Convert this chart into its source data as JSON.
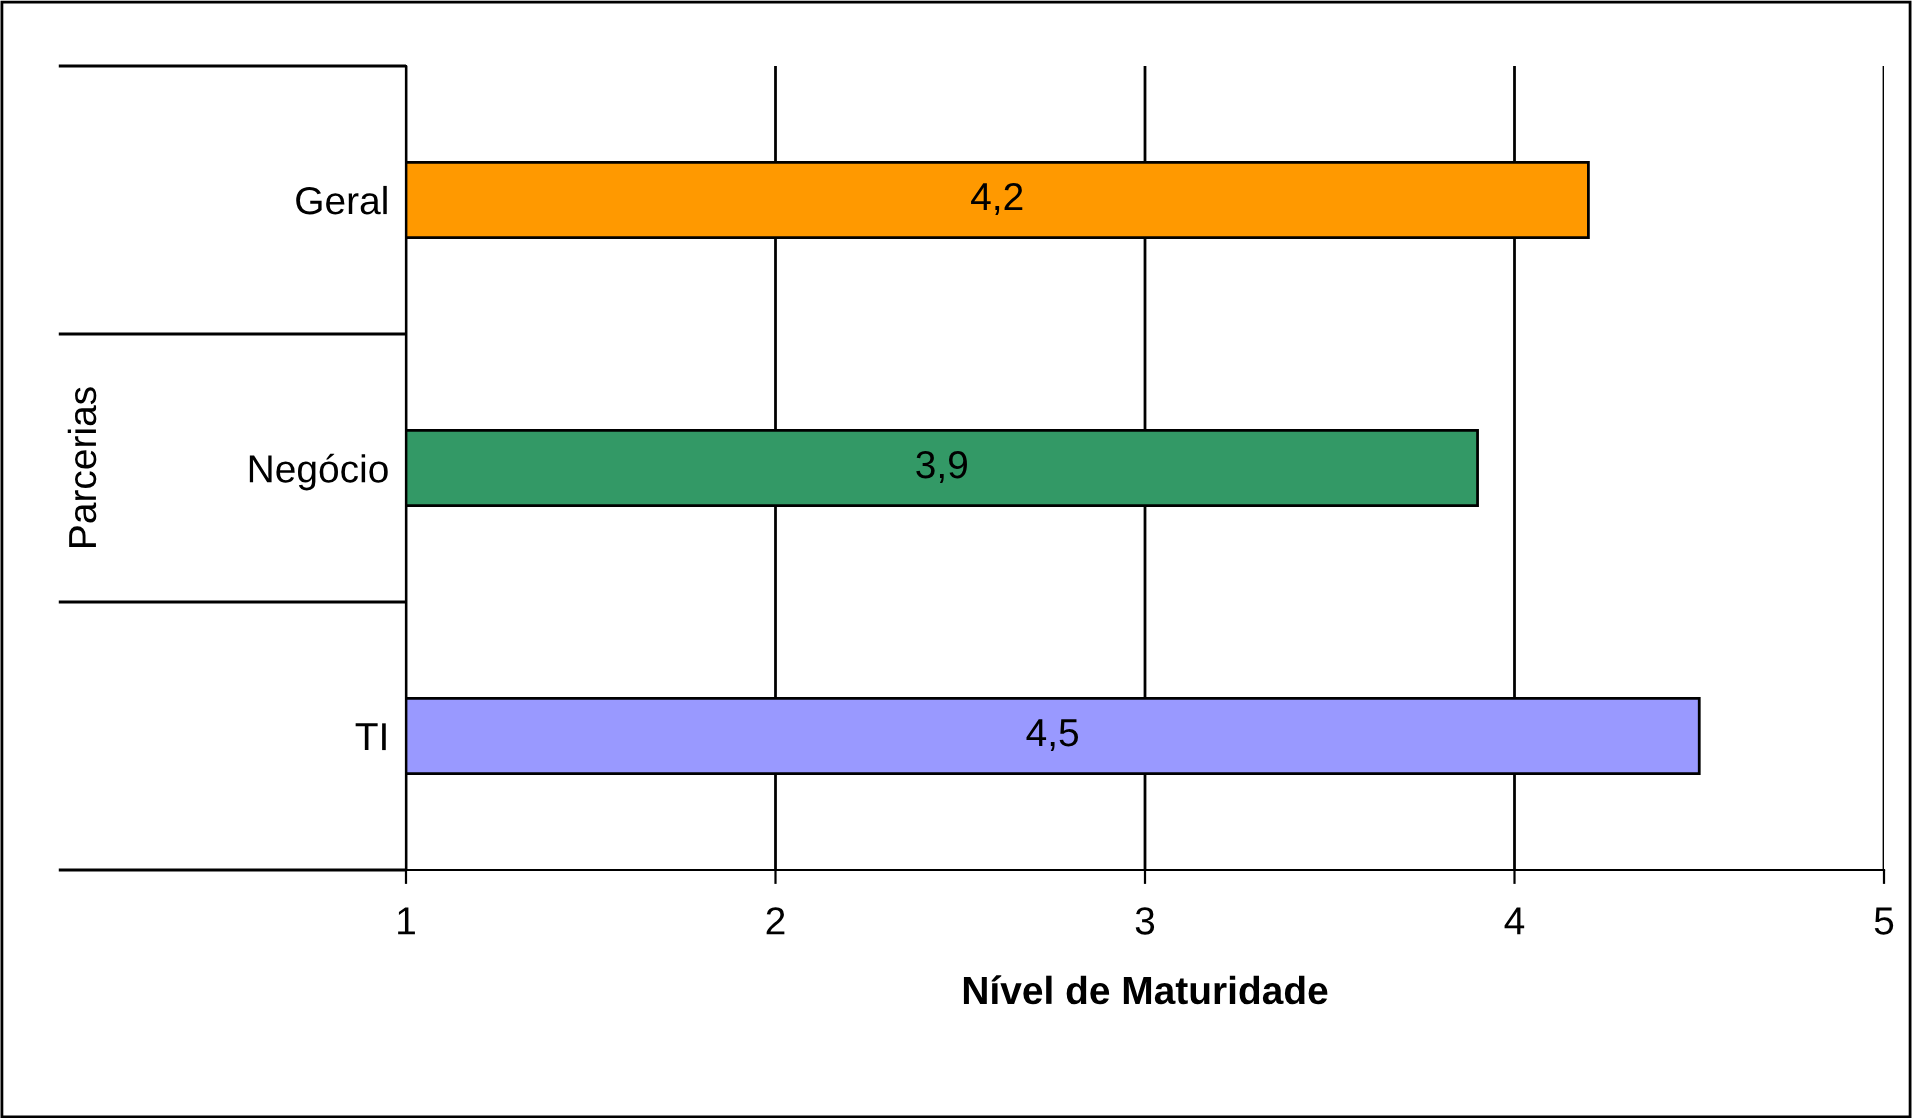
{
  "chart_data": {
    "type": "bar",
    "orientation": "horizontal",
    "categories": [
      "Geral",
      "Negócio",
      "TI"
    ],
    "values": [
      4.2,
      3.9,
      4.5
    ],
    "colors": [
      "#ff9900",
      "#339966",
      "#9999ff"
    ],
    "value_labels": [
      "4,2",
      "3,9",
      "4,5"
    ],
    "xlim": [
      1,
      5
    ],
    "xticks": [
      1,
      2,
      3,
      4,
      5
    ],
    "xlabel": "Nível de Maturidade",
    "ylabel": "Parcerias",
    "grid": "x",
    "legend": false
  }
}
